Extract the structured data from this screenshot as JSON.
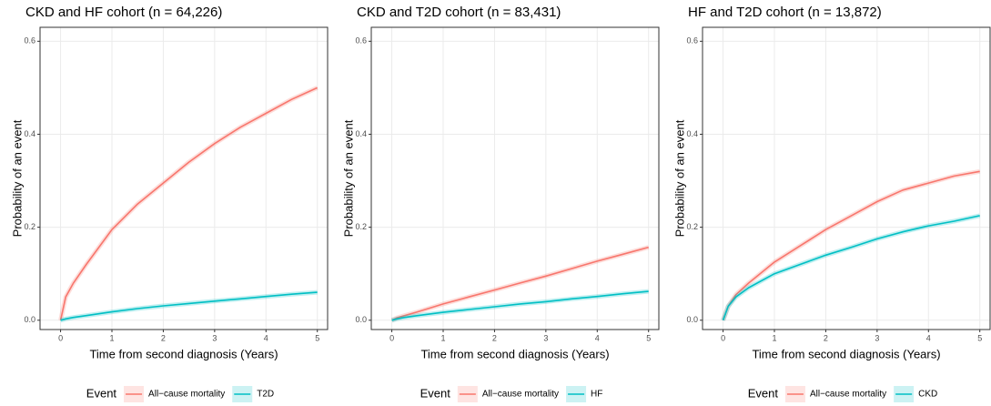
{
  "chart_data": [
    {
      "type": "line",
      "title": "CKD and HF cohort (n = 64,226)",
      "x_label": "Time from second diagnosis (Years)",
      "y_label": "Probability of an event",
      "x": [
        0,
        0.1,
        0.25,
        0.5,
        1,
        1.5,
        2,
        2.5,
        3,
        3.5,
        4,
        4.5,
        5
      ],
      "series": [
        {
          "name": "All−cause mortality",
          "color": "#F8766D",
          "values": [
            0,
            0.05,
            0.08,
            0.12,
            0.195,
            0.25,
            0.295,
            0.34,
            0.38,
            0.415,
            0.445,
            0.475,
            0.5
          ]
        },
        {
          "name": "T2D",
          "color": "#00BFC4",
          "values": [
            0,
            0.003,
            0.006,
            0.01,
            0.018,
            0.025,
            0.031,
            0.036,
            0.041,
            0.046,
            0.051,
            0.056,
            0.06
          ]
        }
      ],
      "xlim": [
        -0.4,
        5.2
      ],
      "xticks": [
        0,
        1,
        2,
        3,
        4,
        5
      ],
      "ylim": [
        -0.02,
        0.63
      ],
      "yticks": [
        {
          "value": 0,
          "label": "0.0"
        },
        0.2,
        0.4,
        0.6
      ],
      "legend_title": "Event",
      "legend_position": "bottom",
      "grid": true
    },
    {
      "type": "line",
      "title": "CKD and T2D cohort (n = 83,431)",
      "x_label": "Time from second diagnosis (Years)",
      "y_label": "Probability of an event",
      "x": [
        0,
        0.1,
        0.25,
        0.5,
        1,
        1.5,
        2,
        2.5,
        3,
        3.5,
        4,
        4.5,
        5
      ],
      "series": [
        {
          "name": "All−cause mortality",
          "color": "#F8766D",
          "values": [
            0,
            0.005,
            0.01,
            0.018,
            0.035,
            0.05,
            0.065,
            0.08,
            0.095,
            0.111,
            0.127,
            0.142,
            0.157
          ]
        },
        {
          "name": "HF",
          "color": "#00BFC4",
          "values": [
            0,
            0.003,
            0.006,
            0.01,
            0.017,
            0.023,
            0.029,
            0.035,
            0.04,
            0.046,
            0.051,
            0.057,
            0.062
          ]
        }
      ],
      "xlim": [
        -0.4,
        5.2
      ],
      "xticks": [
        0,
        1,
        2,
        3,
        4,
        5
      ],
      "ylim": [
        -0.02,
        0.63
      ],
      "yticks": [
        {
          "value": 0,
          "label": "0.0"
        },
        0.2,
        0.4,
        0.6
      ],
      "legend_title": "Event",
      "legend_position": "bottom",
      "grid": true
    },
    {
      "type": "line",
      "title": "HF and T2D cohort (n = 13,872)",
      "x_label": "Time from second diagnosis (Years)",
      "y_label": "Probability of an event",
      "x": [
        0,
        0.1,
        0.25,
        0.5,
        1,
        1.5,
        2,
        2.5,
        3,
        3.5,
        4,
        4.5,
        5
      ],
      "series": [
        {
          "name": "All−cause mortality",
          "color": "#F8766D",
          "values": [
            0,
            0.03,
            0.055,
            0.08,
            0.125,
            0.16,
            0.195,
            0.225,
            0.255,
            0.28,
            0.295,
            0.31,
            0.32
          ]
        },
        {
          "name": "CKD",
          "color": "#00BFC4",
          "values": [
            0,
            0.03,
            0.05,
            0.07,
            0.1,
            0.12,
            0.14,
            0.157,
            0.175,
            0.19,
            0.203,
            0.213,
            0.225
          ]
        }
      ],
      "xlim": [
        -0.4,
        5.2
      ],
      "xticks": [
        0,
        1,
        2,
        3,
        4,
        5
      ],
      "ylim": [
        -0.02,
        0.63
      ],
      "yticks": [
        {
          "value": 0,
          "label": "0.0"
        },
        0.2,
        0.4,
        0.6
      ],
      "legend_title": "Event",
      "legend_position": "bottom",
      "grid": true
    }
  ]
}
